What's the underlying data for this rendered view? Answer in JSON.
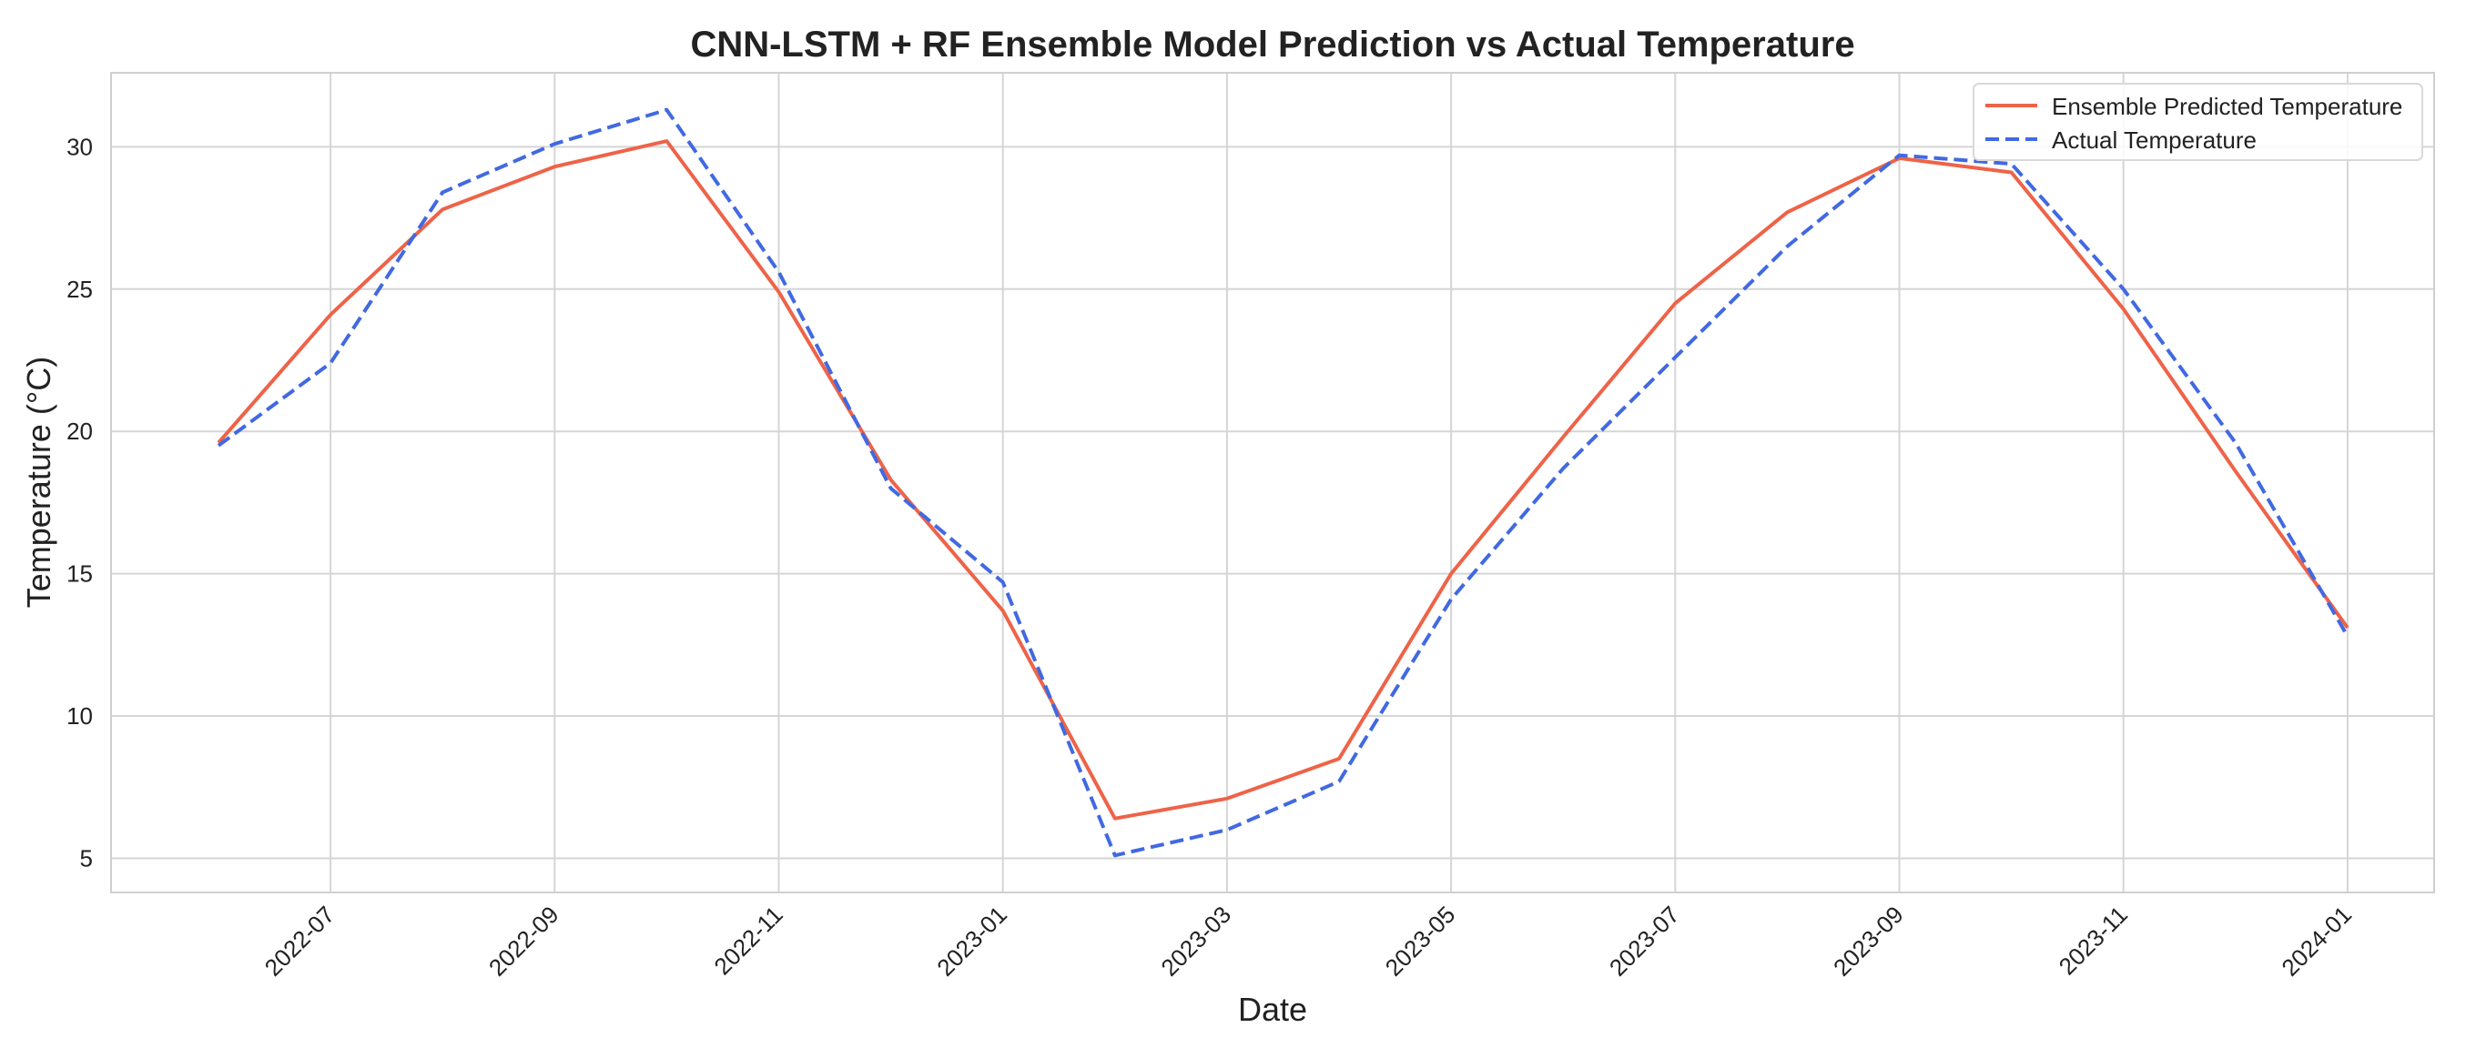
{
  "chart_data": {
    "type": "line",
    "title": "CNN-LSTM + RF Ensemble Model Prediction vs Actual Temperature",
    "xlabel": "Date",
    "ylabel": "Temperature (°C)",
    "x": [
      "2022-06",
      "2022-07",
      "2022-08",
      "2022-09",
      "2022-10",
      "2022-11",
      "2022-12",
      "2023-01",
      "2023-02",
      "2023-03",
      "2023-04",
      "2023-05",
      "2023-06",
      "2023-07",
      "2023-08",
      "2023-09",
      "2023-10",
      "2023-11",
      "2023-12",
      "2024-01"
    ],
    "xticks": [
      "2022-07",
      "2022-09",
      "2022-11",
      "2023-01",
      "2023-03",
      "2023-05",
      "2023-07",
      "2023-09",
      "2023-11",
      "2024-01"
    ],
    "yticks": [
      5,
      10,
      15,
      20,
      25,
      30
    ],
    "ylim": [
      3.8,
      32.6
    ],
    "grid": true,
    "legend_position": "top-right",
    "series": [
      {
        "name": "Ensemble Predicted Temperature",
        "color": "#EE6348",
        "style": "solid",
        "values": [
          19.6,
          24.1,
          27.8,
          29.3,
          30.2,
          24.9,
          18.3,
          13.7,
          6.4,
          7.1,
          8.5,
          15.0,
          19.8,
          24.5,
          27.7,
          29.6,
          29.1,
          24.3,
          18.6,
          13.1
        ]
      },
      {
        "name": "Actual Temperature",
        "color": "#4169E1",
        "style": "dashed",
        "values": [
          19.5,
          22.4,
          28.4,
          30.1,
          31.3,
          25.6,
          18.0,
          14.7,
          5.1,
          6.0,
          7.7,
          14.1,
          18.7,
          22.6,
          26.5,
          29.7,
          29.4,
          25.0,
          19.6,
          12.8
        ]
      }
    ]
  }
}
